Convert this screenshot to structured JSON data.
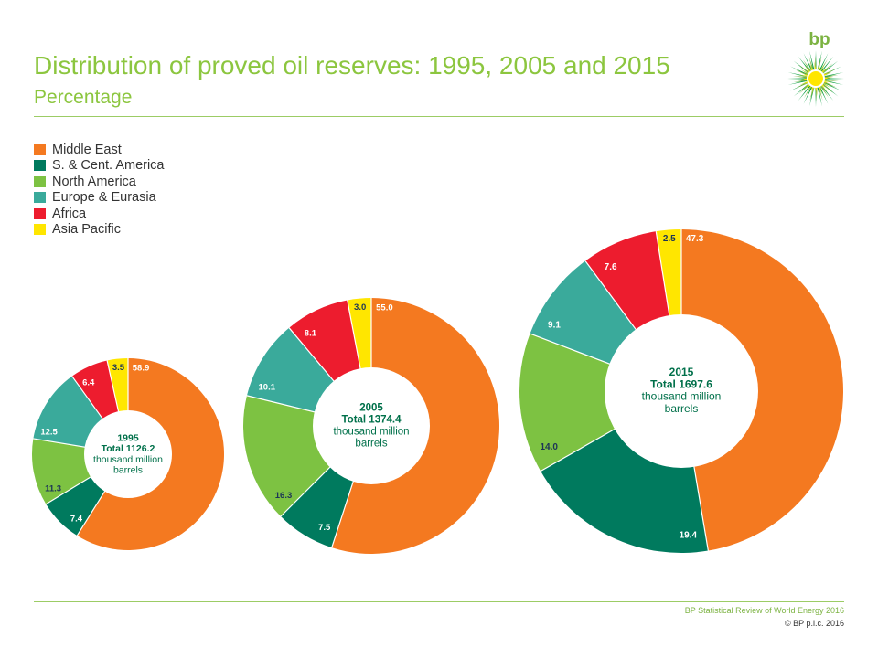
{
  "header": {
    "title": "Distribution of proved oil reserves: 1995, 2005 and 2015",
    "subtitle": "Percentage"
  },
  "logo": {
    "text": "bp"
  },
  "footer": {
    "source": "BP Statistical Review of World Energy 2016",
    "copyright": "© BP p.l.c. 2016"
  },
  "colors": {
    "accent": "#8cc63f",
    "label_dark": "#1d3557"
  },
  "chart_data": {
    "type": "donut",
    "categories": [
      "Middle East",
      "S. & Cent. America",
      "North America",
      "Europe & Eurasia",
      "Africa",
      "Asia Pacific"
    ],
    "category_colors": [
      "#f47920",
      "#007a5e",
      "#7dc242",
      "#3aaa9b",
      "#ed1c2e",
      "#ffe600"
    ],
    "legend_position": "top-left",
    "series": [
      {
        "year": "1995",
        "total_label": "Total 1126.2",
        "unit_line1": "thousand million",
        "unit_line2": "barrels",
        "values": [
          58.9,
          7.4,
          11.3,
          12.5,
          6.4,
          3.5
        ],
        "value_labels": [
          "58.9",
          "7.4",
          "11.3",
          "12.5",
          "6.4",
          "3.5"
        ]
      },
      {
        "year": "2005",
        "total_label": "Total 1374.4",
        "unit_line1": "thousand million",
        "unit_line2": "barrels",
        "values": [
          55.0,
          7.5,
          16.3,
          10.1,
          8.1,
          3.0
        ],
        "value_labels": [
          "55.0",
          "7.5",
          "16.3",
          "10.1",
          "8.1",
          "3.0"
        ]
      },
      {
        "year": "2015",
        "total_label": "Total 1697.6",
        "unit_line1": "thousand million",
        "unit_line2": "barrels",
        "values": [
          47.3,
          19.4,
          14.0,
          9.1,
          7.6,
          2.5
        ],
        "value_labels": [
          "47.3",
          "19.4",
          "14.0",
          "9.1",
          "7.6",
          "2.5"
        ]
      }
    ]
  }
}
